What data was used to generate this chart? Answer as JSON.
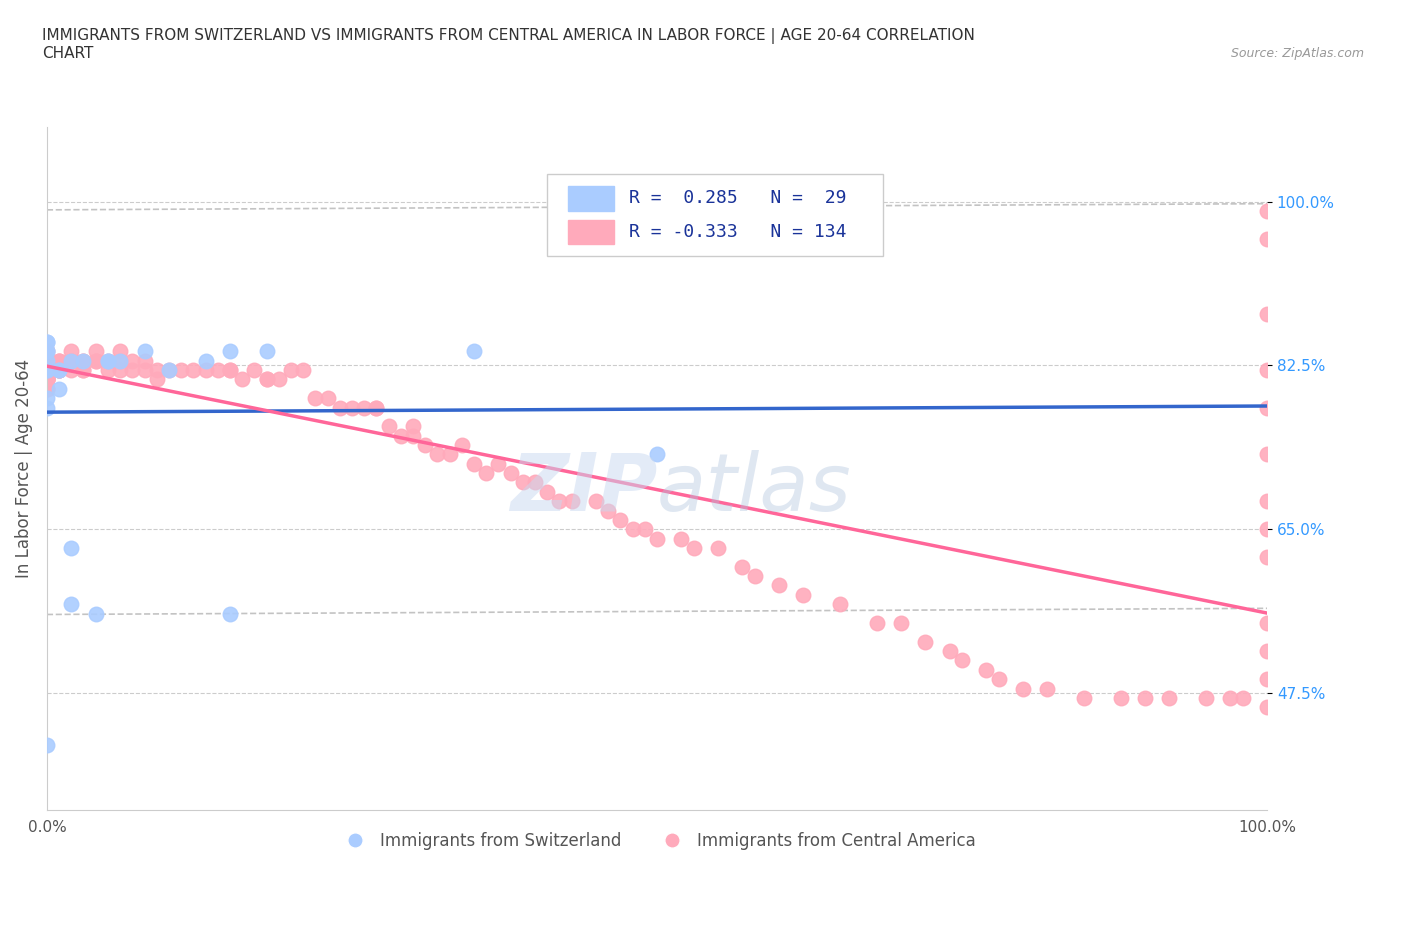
{
  "title_line1": "IMMIGRANTS FROM SWITZERLAND VS IMMIGRANTS FROM CENTRAL AMERICA IN LABOR FORCE | AGE 20-64 CORRELATION",
  "title_line2": "CHART",
  "source_text": "Source: ZipAtlas.com",
  "ylabel": "In Labor Force | Age 20-64",
  "xlim": [
    0.0,
    1.0
  ],
  "ylim": [
    0.35,
    1.08
  ],
  "ytick_positions": [
    0.475,
    0.65,
    0.825,
    1.0
  ],
  "ytick_labels": [
    "47.5%",
    "65.0%",
    "82.5%",
    "100.0%"
  ],
  "ytick_color": "#3399ff",
  "swiss_color": "#aaccff",
  "ca_color": "#ffaabb",
  "swiss_line_color": "#3366cc",
  "ca_line_color": "#ff6699",
  "ci_color": "#aaaaaa",
  "watermark_color": "#c8d8f0",
  "background_color": "#ffffff",
  "grid_color": "#cccccc",
  "title_color": "#333333",
  "swiss_scatter_x": [
    0.0,
    0.0,
    0.0,
    0.0,
    0.0,
    0.0,
    0.0,
    0.0,
    0.0,
    0.0,
    0.01,
    0.01,
    0.01,
    0.02,
    0.02,
    0.02,
    0.03,
    0.04,
    0.05,
    0.05,
    0.06,
    0.08,
    0.1,
    0.13,
    0.15,
    0.15,
    0.18,
    0.35,
    0.5
  ],
  "swiss_scatter_y": [
    0.42,
    0.79,
    0.78,
    0.82,
    0.82,
    0.83,
    0.84,
    0.84,
    0.85,
    0.85,
    0.82,
    0.82,
    0.8,
    0.83,
    0.63,
    0.57,
    0.83,
    0.56,
    0.83,
    0.83,
    0.83,
    0.84,
    0.82,
    0.83,
    0.84,
    0.56,
    0.84,
    0.84,
    0.73
  ],
  "ca_scatter_x": [
    0.0,
    0.0,
    0.0,
    0.0,
    0.0,
    0.0,
    0.0,
    0.0,
    0.0,
    0.0,
    0.0,
    0.0,
    0.0,
    0.0,
    0.0,
    0.0,
    0.0,
    0.0,
    0.0,
    0.0,
    0.01,
    0.01,
    0.01,
    0.01,
    0.01,
    0.01,
    0.01,
    0.02,
    0.02,
    0.02,
    0.02,
    0.03,
    0.03,
    0.03,
    0.03,
    0.04,
    0.04,
    0.04,
    0.05,
    0.05,
    0.06,
    0.06,
    0.06,
    0.07,
    0.07,
    0.08,
    0.08,
    0.09,
    0.09,
    0.1,
    0.11,
    0.12,
    0.13,
    0.14,
    0.15,
    0.15,
    0.16,
    0.17,
    0.18,
    0.18,
    0.19,
    0.2,
    0.21,
    0.22,
    0.23,
    0.24,
    0.25,
    0.26,
    0.27,
    0.27,
    0.28,
    0.29,
    0.3,
    0.3,
    0.31,
    0.32,
    0.33,
    0.34,
    0.35,
    0.36,
    0.37,
    0.38,
    0.39,
    0.4,
    0.41,
    0.42,
    0.43,
    0.45,
    0.46,
    0.47,
    0.48,
    0.49,
    0.5,
    0.52,
    0.53,
    0.55,
    0.57,
    0.58,
    0.6,
    0.62,
    0.65,
    0.68,
    0.7,
    0.72,
    0.74,
    0.75,
    0.77,
    0.78,
    0.8,
    0.82,
    0.85,
    0.88,
    0.9,
    0.92,
    0.95,
    0.97,
    0.98,
    1.0,
    1.0,
    1.0,
    1.0,
    1.0,
    1.0,
    1.0,
    1.0,
    1.0,
    1.0,
    1.0,
    1.0,
    1.0
  ],
  "ca_scatter_y": [
    0.84,
    0.83,
    0.83,
    0.83,
    0.83,
    0.83,
    0.82,
    0.82,
    0.82,
    0.82,
    0.82,
    0.82,
    0.81,
    0.81,
    0.81,
    0.81,
    0.81,
    0.81,
    0.8,
    0.8,
    0.83,
    0.83,
    0.83,
    0.82,
    0.82,
    0.82,
    0.82,
    0.84,
    0.83,
    0.83,
    0.82,
    0.83,
    0.83,
    0.82,
    0.82,
    0.84,
    0.83,
    0.83,
    0.83,
    0.82,
    0.84,
    0.83,
    0.82,
    0.83,
    0.82,
    0.83,
    0.82,
    0.82,
    0.81,
    0.82,
    0.82,
    0.82,
    0.82,
    0.82,
    0.82,
    0.82,
    0.81,
    0.82,
    0.81,
    0.81,
    0.81,
    0.82,
    0.82,
    0.79,
    0.79,
    0.78,
    0.78,
    0.78,
    0.78,
    0.78,
    0.76,
    0.75,
    0.76,
    0.75,
    0.74,
    0.73,
    0.73,
    0.74,
    0.72,
    0.71,
    0.72,
    0.71,
    0.7,
    0.7,
    0.69,
    0.68,
    0.68,
    0.68,
    0.67,
    0.66,
    0.65,
    0.65,
    0.64,
    0.64,
    0.63,
    0.63,
    0.61,
    0.6,
    0.59,
    0.58,
    0.57,
    0.55,
    0.55,
    0.53,
    0.52,
    0.51,
    0.5,
    0.49,
    0.48,
    0.48,
    0.47,
    0.47,
    0.47,
    0.47,
    0.47,
    0.47,
    0.47,
    0.99,
    0.96,
    0.88,
    0.82,
    0.78,
    0.73,
    0.68,
    0.65,
    0.62,
    0.55,
    0.52,
    0.49,
    0.46
  ]
}
